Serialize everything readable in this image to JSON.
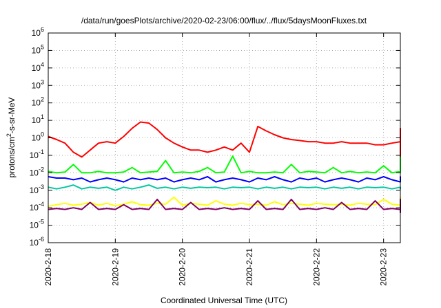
{
  "chart_data": {
    "type": "line",
    "title": "/data/run/goesPlots/archive/2020-02-23/06:00/flux/../flux/5daysMoonFluxes.txt",
    "xlabel": "Coordinated Universal Time (UTC)",
    "ylabel_parts": {
      "base": "protons/cm",
      "sup": "2",
      "rest": "-s-sr-MeV"
    },
    "y_scale": "log",
    "ylim": [
      1e-06,
      1000000.0
    ],
    "y_ticks": [
      {
        "value": 1e-06,
        "base": "10",
        "exp": "-6"
      },
      {
        "value": 1e-05,
        "base": "10",
        "exp": "-5"
      },
      {
        "value": 0.0001,
        "base": "10",
        "exp": "-4"
      },
      {
        "value": 0.001,
        "base": "10",
        "exp": "-3"
      },
      {
        "value": 0.01,
        "base": "10",
        "exp": "-2"
      },
      {
        "value": 0.1,
        "base": "10",
        "exp": "-1"
      },
      {
        "value": 1.0,
        "base": "10",
        "exp": "0"
      },
      {
        "value": 10.0,
        "base": "10",
        "exp": "1"
      },
      {
        "value": 100.0,
        "base": "10",
        "exp": "2"
      },
      {
        "value": 1000.0,
        "base": "10",
        "exp": "3"
      },
      {
        "value": 10000.0,
        "base": "10",
        "exp": "4"
      },
      {
        "value": 100000.0,
        "base": "10",
        "exp": "5"
      },
      {
        "value": 1000000.0,
        "base": "10",
        "exp": "6"
      }
    ],
    "xlim": [
      "2020-02-18 00:00",
      "2020-02-23 06:00"
    ],
    "x_ticks": [
      "2020-2-18",
      "2020-2-19",
      "2020-2-20",
      "2020-2-21",
      "2020-2-22",
      "2020-2-23"
    ],
    "grid": true,
    "x_step_hours": 3,
    "series": [
      {
        "color": "#ff0000",
        "values": [
          1.2,
          0.8,
          0.5,
          0.15,
          0.08,
          0.2,
          0.5,
          0.6,
          0.5,
          1.2,
          3.5,
          8,
          7,
          3,
          1,
          0.5,
          0.3,
          0.2,
          0.2,
          0.15,
          0.2,
          0.3,
          0.2,
          0.5,
          0.15,
          4.5,
          2.5,
          1.5,
          1,
          0.8,
          0.7,
          0.6,
          0.6,
          0.5,
          0.5,
          0.6,
          0.5,
          0.5,
          0.5,
          0.4,
          0.4,
          0.5,
          0.6,
          0.8,
          1,
          0.9,
          0.6,
          0.5,
          0.5,
          1.2,
          3.5,
          3,
          0.8,
          0.6,
          0.5,
          0.5,
          0.4,
          0.3,
          0.6,
          0.25,
          0.1,
          0.06,
          0.2,
          0.5,
          0.8,
          1.5,
          2.5,
          2.5,
          1.8,
          1.2,
          1.5,
          1,
          0.9,
          0.8,
          0.4,
          0.3,
          0.25,
          0.2,
          0.2,
          0.25,
          0.3,
          0.35,
          0.4,
          0.6,
          1.2,
          1.5,
          2,
          1.5,
          1.2,
          1,
          1,
          0.8,
          0.7,
          0.6,
          0.6,
          0.5,
          0.4,
          0.5,
          0.45,
          0.4,
          0.45,
          0.6
        ]
      },
      {
        "color": "#00ff00",
        "values": [
          0.012,
          0.01,
          0.011,
          0.03,
          0.01,
          0.01,
          0.012,
          0.01,
          0.01,
          0.011,
          0.02,
          0.01,
          0.011,
          0.012,
          0.05,
          0.01,
          0.011,
          0.01,
          0.012,
          0.02,
          0.01,
          0.011,
          0.09,
          0.01,
          0.012,
          0.01,
          0.01,
          0.011,
          0.01,
          0.03,
          0.01,
          0.012,
          0.011,
          0.01,
          0.02,
          0.01,
          0.012,
          0.01,
          0.011,
          0.01,
          0.025,
          0.01,
          0.012,
          0.01,
          0.011,
          0.08,
          0.01,
          0.012,
          0.02,
          0.01,
          0.06,
          0.011,
          0.01,
          0.04,
          0.012,
          0.01,
          0.015,
          0.01,
          0.011,
          0.01,
          0.05,
          0.012,
          0.01,
          0.011,
          0.04,
          0.01,
          0.012,
          0.011,
          0.01,
          0.03,
          0.011,
          0.01,
          0.012,
          0.04,
          0.01,
          0.011,
          0.01,
          0.02,
          0.012,
          0.01,
          0.011,
          0.01,
          0.03,
          0.01,
          0.012,
          0.08,
          0.01,
          0.011,
          0.05,
          0.01,
          0.012,
          0.011,
          0.01,
          0.012,
          0.01,
          0.011,
          0.01,
          0.012,
          0.011,
          0.01,
          0.011,
          0.05
        ]
      },
      {
        "color": "#0000ff",
        "values": [
          0.006,
          0.005,
          0.005,
          0.004,
          0.005,
          0.003,
          0.004,
          0.005,
          0.004,
          0.003,
          0.005,
          0.004,
          0.005,
          0.004,
          0.005,
          0.003,
          0.004,
          0.005,
          0.004,
          0.006,
          0.003,
          0.004,
          0.005,
          0.004,
          0.003,
          0.005,
          0.004,
          0.006,
          0.004,
          0.003,
          0.005,
          0.004,
          0.005,
          0.003,
          0.004,
          0.005,
          0.004,
          0.003,
          0.005,
          0.004,
          0.006,
          0.004,
          0.003,
          0.005,
          0.004,
          0.005,
          0.003,
          0.004,
          0.005,
          0.004,
          0.003,
          0.005,
          0.004,
          0.005,
          0.003,
          0.004,
          0.005,
          0.004,
          0.003,
          0.005,
          0.004,
          0.005,
          0.003,
          0.004,
          0.005,
          0.004,
          0.006,
          0.003,
          0.004,
          0.005,
          0.004,
          0.003,
          0.005,
          0.004,
          0.005,
          0.003,
          0.004,
          0.005,
          0.004,
          0.003,
          0.005,
          0.004,
          0.005,
          0.003,
          0.004,
          0.005,
          0.004,
          0.006,
          0.003,
          0.004,
          0.005,
          0.004,
          0.003,
          0.005,
          0.004,
          0.005,
          0.003,
          0.004,
          0.005,
          0.004,
          0.003,
          0.004
        ]
      },
      {
        "color": "#00c8a0",
        "values": [
          0.0015,
          0.0012,
          0.0015,
          0.002,
          0.0012,
          0.0015,
          0.0013,
          0.0015,
          0.001,
          0.0015,
          0.0012,
          0.0015,
          0.002,
          0.0013,
          0.0015,
          0.0012,
          0.0015,
          0.0013,
          0.0015,
          0.0014,
          0.0015,
          0.0012,
          0.0015,
          0.0014,
          0.0015,
          0.0012,
          0.0015,
          0.0013,
          0.0015,
          0.0012,
          0.0015,
          0.0014,
          0.0015,
          0.0012,
          0.0015,
          0.0013,
          0.0015,
          0.0012,
          0.0015,
          0.0014,
          0.0015,
          0.0012,
          0.0015,
          0.0013,
          0.0015,
          0.0012,
          0.0015,
          0.0014,
          0.0015,
          0.0012,
          0.0015,
          0.0013,
          0.0015,
          0.0012,
          0.0015,
          0.0014,
          0.0015,
          0.0012,
          0.0015,
          0.0013,
          0.0015,
          0.0012,
          0.0015,
          0.0014,
          0.0015,
          0.0012,
          0.0015,
          0.0013,
          0.0015,
          0.0012,
          0.0015,
          0.0014,
          0.0015,
          0.0012,
          0.0015,
          0.0013,
          0.0015,
          0.0012,
          0.0015,
          0.0014,
          0.0015,
          0.0012,
          0.0015,
          0.0013,
          0.0015,
          0.0012,
          0.0015,
          0.0014,
          0.0015,
          0.0012,
          0.0015,
          0.0013,
          0.0015,
          0.0012,
          0.0015,
          0.0014,
          0.0015,
          0.0012,
          0.0015,
          0.0013,
          0.0015,
          0.0014
        ]
      },
      {
        "color": "#ffff00",
        "values": [
          0.00012,
          0.00015,
          0.00018,
          0.00014,
          0.00016,
          0.0002,
          0.00014,
          0.00018,
          0.00013,
          0.00016,
          0.00022,
          0.00015,
          0.00014,
          0.00018,
          0.00016,
          0.0004,
          0.00014,
          0.00018,
          0.00016,
          0.00014,
          0.00025,
          0.00016,
          0.00014,
          0.00018,
          0.00015,
          0.00016,
          0.00014,
          0.00022,
          0.00015,
          0.00018,
          0.00016,
          0.00014,
          0.00018,
          0.00016,
          0.00015,
          0.00016,
          0.00014,
          0.00018,
          0.00016,
          0.00015,
          0.0003,
          0.00016,
          0.00014,
          0.00018,
          0.00016,
          0.00025,
          0.00015,
          0.00018,
          0.00016,
          0.00014,
          0.00022,
          0.00016,
          0.00015,
          0.00018,
          0.00016,
          0.00014,
          0.00018,
          0.00015,
          0.00016,
          0.00014,
          0.0003,
          0.00016,
          0.00018,
          0.00015,
          0.00016,
          0.00014,
          0.00018,
          0.00016,
          0.00015,
          0.00022,
          0.00016,
          0.00014,
          0.00018,
          0.00016,
          0.00015,
          0.00016,
          0.00014,
          0.00018,
          0.00016,
          0.00015,
          0.00025,
          0.00016,
          0.00014,
          0.00018,
          0.00016,
          0.00015,
          0.00016,
          0.00014,
          0.00018,
          0.0004,
          0.00015,
          0.00016,
          0.00014,
          0.00018,
          0.00016,
          0.00015,
          0.00016,
          0.00014,
          0.00018,
          0.00016,
          0.00015,
          0.0002
        ]
      },
      {
        "color": "#800060",
        "values": [
          8e-05,
          9e-05,
          8e-05,
          0.0001,
          8e-05,
          0.0002,
          8e-05,
          9e-05,
          8e-05,
          0.00015,
          8e-05,
          9e-05,
          8e-05,
          0.0003,
          8e-05,
          9e-05,
          8e-05,
          0.0002,
          8e-05,
          9e-05,
          8e-05,
          0.0001,
          8e-05,
          9e-05,
          8e-05,
          0.00025,
          8e-05,
          9e-05,
          8e-05,
          0.0003,
          8e-05,
          9e-05,
          8e-05,
          0.0001,
          8e-05,
          0.0002,
          8e-05,
          9e-05,
          8e-05,
          0.00025,
          8e-05,
          9e-05,
          8e-05,
          0.00015,
          8e-05,
          9e-05,
          8e-05,
          0.0003,
          8e-05,
          9e-05,
          8e-05,
          0.0001,
          8e-05,
          9e-05,
          8e-05,
          0.0002,
          8e-05,
          9e-05,
          8e-05,
          0.00025,
          8e-05,
          9e-05,
          8e-05,
          0.0001,
          8e-05,
          9e-05,
          8e-05,
          0.0003,
          8e-05,
          9e-05,
          8e-05,
          0.00015,
          8e-05,
          9e-05,
          8e-05,
          0.0002,
          8e-05,
          9e-05,
          8e-05,
          0.0001,
          8e-05,
          9e-05,
          8e-05,
          0.00025,
          8e-05,
          9e-05,
          8e-05,
          0.0003,
          8e-05,
          9e-05,
          8e-05,
          0.00015,
          8e-05,
          9e-05,
          8e-05,
          0.0001,
          8e-05,
          9e-05,
          8e-05,
          0.0002,
          8e-05,
          5e-05
        ]
      }
    ]
  }
}
